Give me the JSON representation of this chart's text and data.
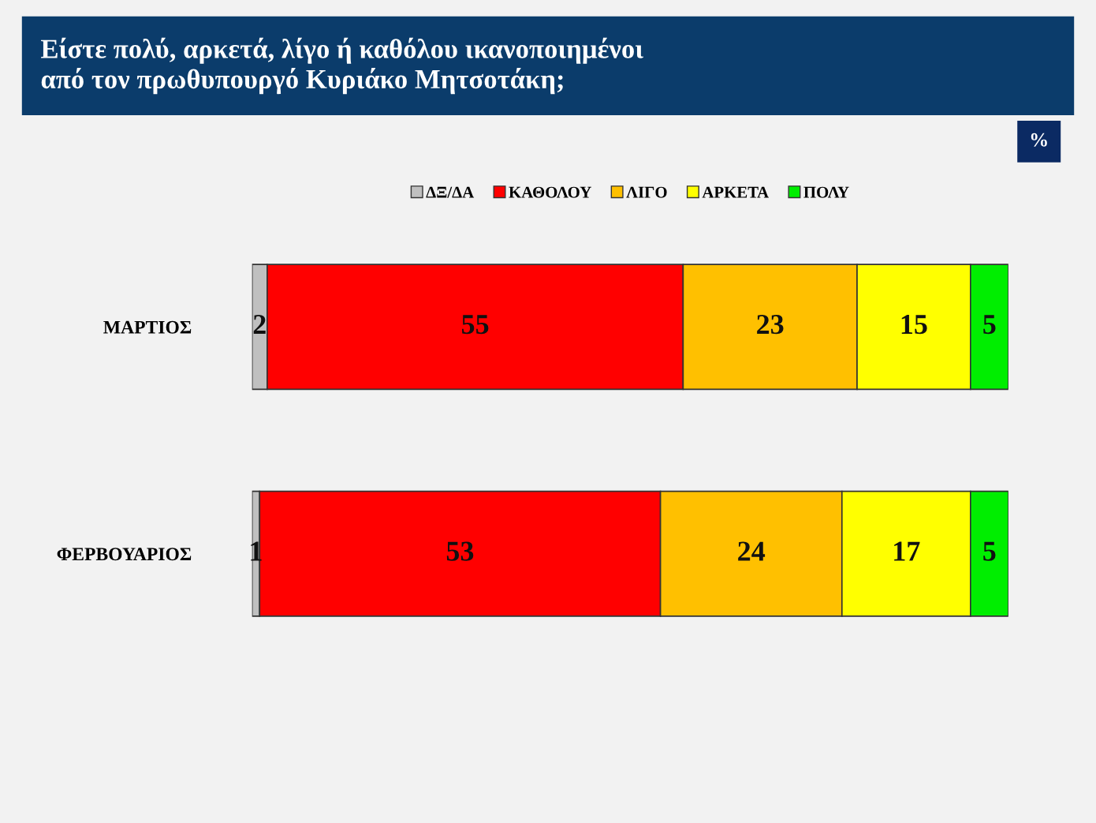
{
  "chart_data": {
    "type": "bar",
    "orientation": "horizontal",
    "stacked": true,
    "data_labels": true,
    "legend": "top",
    "grid": false,
    "title": "Είστε πολύ, αρκετά, λίγο ή καθόλου ικανοποιημένοι\nαπό τον πρωθυπουργό Κυριάκο Μητσοτάκη;",
    "annotations": [
      "%"
    ],
    "categories": [
      "ΜΑΡΤΙΟΣ",
      "ΦΕΡΒΟΥΑΡΙΟΣ"
    ],
    "series": [
      {
        "name": "ΔΞ/ΔΑ",
        "color": "#c0c0c0",
        "values": [
          2,
          1
        ]
      },
      {
        "name": "ΚΑΘΟΛΟΥ",
        "color": "#ff0000",
        "values": [
          55,
          53
        ]
      },
      {
        "name": "ΛΙΓΟ",
        "color": "#ffc000",
        "values": [
          23,
          24
        ]
      },
      {
        "name": "ΑΡΚΕΤΑ",
        "color": "#ffff00",
        "values": [
          15,
          17
        ]
      },
      {
        "name": "ΠΟΛΥ",
        "color": "#00ee00",
        "values": [
          5,
          5
        ]
      }
    ]
  }
}
